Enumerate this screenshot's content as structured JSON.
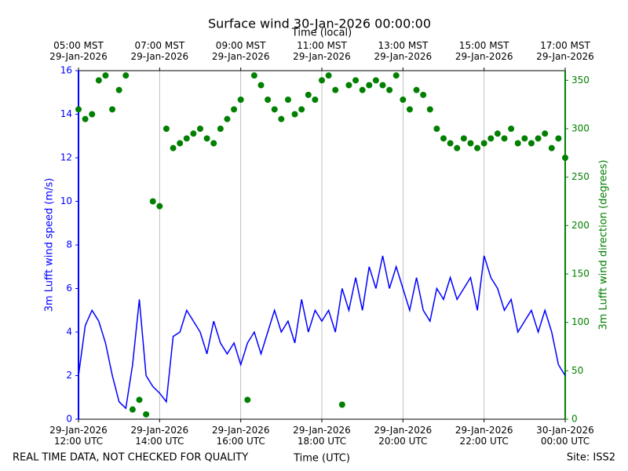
{
  "chart_data": {
    "type": "line_scatter_dual",
    "title": "Surface wind 30-Jan-2026 00:00:00",
    "x_label": "Time (UTC)",
    "top_x_label": "Time (local)",
    "y_label": "3m Lufft wind speed (m/s)",
    "y2_label": "3m Lufft wind direction (degrees)",
    "footer_left": "REAL TIME DATA, NOT CHECKED FOR QUALITY",
    "footer_right": "Site: ISS2",
    "grid": "x",
    "xlim": [
      "2026-01-29 12:00",
      "2026-01-30 00:00"
    ],
    "xticks": [
      {
        "value": "2026-01-29 12:00",
        "label": "29-Jan-2026\n12:00 UTC"
      },
      {
        "value": "2026-01-29 14:00",
        "label": "29-Jan-2026\n14:00 UTC"
      },
      {
        "value": "2026-01-29 16:00",
        "label": "29-Jan-2026\n16:00 UTC"
      },
      {
        "value": "2026-01-29 18:00",
        "label": "29-Jan-2026\n18:00 UTC"
      },
      {
        "value": "2026-01-29 20:00",
        "label": "29-Jan-2026\n20:00 UTC"
      },
      {
        "value": "2026-01-29 22:00",
        "label": "29-Jan-2026\n22:00 UTC"
      },
      {
        "value": "2026-01-30 00:00",
        "label": "30-Jan-2026\n00:00 UTC"
      }
    ],
    "top_xticks": [
      {
        "value": "2026-01-29 12:00",
        "label": "05:00 MST\n29-Jan-2026"
      },
      {
        "value": "2026-01-29 14:00",
        "label": "07:00 MST\n29-Jan-2026"
      },
      {
        "value": "2026-01-29 16:00",
        "label": "09:00 MST\n29-Jan-2026"
      },
      {
        "value": "2026-01-29 18:00",
        "label": "11:00 MST\n29-Jan-2026"
      },
      {
        "value": "2026-01-29 20:00",
        "label": "13:00 MST\n29-Jan-2026"
      },
      {
        "value": "2026-01-29 22:00",
        "label": "15:00 MST\n29-Jan-2026"
      },
      {
        "value": "2026-01-30 00:00",
        "label": "17:00 MST\n29-Jan-2026"
      }
    ],
    "ylim": [
      0,
      16
    ],
    "yticks": [
      0,
      2,
      4,
      6,
      8,
      10,
      12,
      14,
      16
    ],
    "y2lim": [
      0,
      360
    ],
    "y2ticks": [
      0,
      50,
      100,
      150,
      200,
      250,
      300,
      350
    ],
    "x": [
      "2026-01-29 12:00",
      "2026-01-29 12:10",
      "2026-01-29 12:20",
      "2026-01-29 12:30",
      "2026-01-29 12:40",
      "2026-01-29 12:50",
      "2026-01-29 13:00",
      "2026-01-29 13:10",
      "2026-01-29 13:20",
      "2026-01-29 13:30",
      "2026-01-29 13:40",
      "2026-01-29 13:50",
      "2026-01-29 14:00",
      "2026-01-29 14:10",
      "2026-01-29 14:20",
      "2026-01-29 14:30",
      "2026-01-29 14:40",
      "2026-01-29 14:50",
      "2026-01-29 15:00",
      "2026-01-29 15:10",
      "2026-01-29 15:20",
      "2026-01-29 15:30",
      "2026-01-29 15:40",
      "2026-01-29 15:50",
      "2026-01-29 16:00",
      "2026-01-29 16:10",
      "2026-01-29 16:20",
      "2026-01-29 16:30",
      "2026-01-29 16:40",
      "2026-01-29 16:50",
      "2026-01-29 17:00",
      "2026-01-29 17:10",
      "2026-01-29 17:20",
      "2026-01-29 17:30",
      "2026-01-29 17:40",
      "2026-01-29 17:50",
      "2026-01-29 18:00",
      "2026-01-29 18:10",
      "2026-01-29 18:20",
      "2026-01-29 18:30",
      "2026-01-29 18:40",
      "2026-01-29 18:50",
      "2026-01-29 19:00",
      "2026-01-29 19:10",
      "2026-01-29 19:20",
      "2026-01-29 19:30",
      "2026-01-29 19:40",
      "2026-01-29 19:50",
      "2026-01-29 20:00",
      "2026-01-29 20:10",
      "2026-01-29 20:20",
      "2026-01-29 20:30",
      "2026-01-29 20:40",
      "2026-01-29 20:50",
      "2026-01-29 21:00",
      "2026-01-29 21:10",
      "2026-01-29 21:20",
      "2026-01-29 21:30",
      "2026-01-29 21:40",
      "2026-01-29 21:50",
      "2026-01-29 22:00",
      "2026-01-29 22:10",
      "2026-01-29 22:20",
      "2026-01-29 22:30",
      "2026-01-29 22:40",
      "2026-01-29 22:50",
      "2026-01-29 23:00",
      "2026-01-29 23:10",
      "2026-01-29 23:20",
      "2026-01-29 23:30",
      "2026-01-29 23:40",
      "2026-01-29 23:50",
      "2026-01-30 00:00"
    ],
    "series": [
      {
        "name": "3m Lufft wind speed",
        "color": "#0000ff",
        "style": "line",
        "values": [
          2,
          4.3,
          5,
          4.5,
          3.5,
          2,
          0.8,
          0.5,
          2.5,
          5.5,
          2,
          1.5,
          1.2,
          0.8,
          3.8,
          4,
          5,
          4.5,
          4,
          3,
          4.5,
          3.5,
          3,
          3.5,
          2.5,
          3.5,
          4,
          3,
          4,
          5,
          4,
          4.5,
          3.5,
          5.5,
          4,
          5,
          4.5,
          5,
          4,
          6,
          5,
          6.5,
          5,
          7,
          6,
          7.5,
          6,
          7,
          6,
          5,
          6.5,
          5,
          4.5,
          6,
          5.5,
          6.5,
          5.5,
          6,
          6.5,
          5,
          7.5,
          6.5,
          6,
          5,
          5.5,
          4,
          4.5,
          5,
          4,
          5,
          4,
          2.5,
          2
        ]
      },
      {
        "name": "3m Lufft wind direction",
        "color": "#008000",
        "style": "scatter",
        "axis": "y2",
        "values": [
          320,
          310,
          315,
          350,
          355,
          320,
          340,
          355,
          10,
          20,
          5,
          225,
          220,
          300,
          280,
          285,
          290,
          295,
          300,
          290,
          285,
          300,
          310,
          320,
          330,
          20,
          355,
          345,
          330,
          320,
          310,
          330,
          315,
          320,
          335,
          330,
          350,
          355,
          340,
          15,
          345,
          350,
          340,
          345,
          350,
          345,
          340,
          355,
          330,
          320,
          340,
          335,
          320,
          300,
          290,
          285,
          280,
          290,
          285,
          280,
          285,
          290,
          295,
          290,
          300,
          285,
          290,
          285,
          290,
          295,
          280,
          290,
          270
        ]
      }
    ]
  }
}
